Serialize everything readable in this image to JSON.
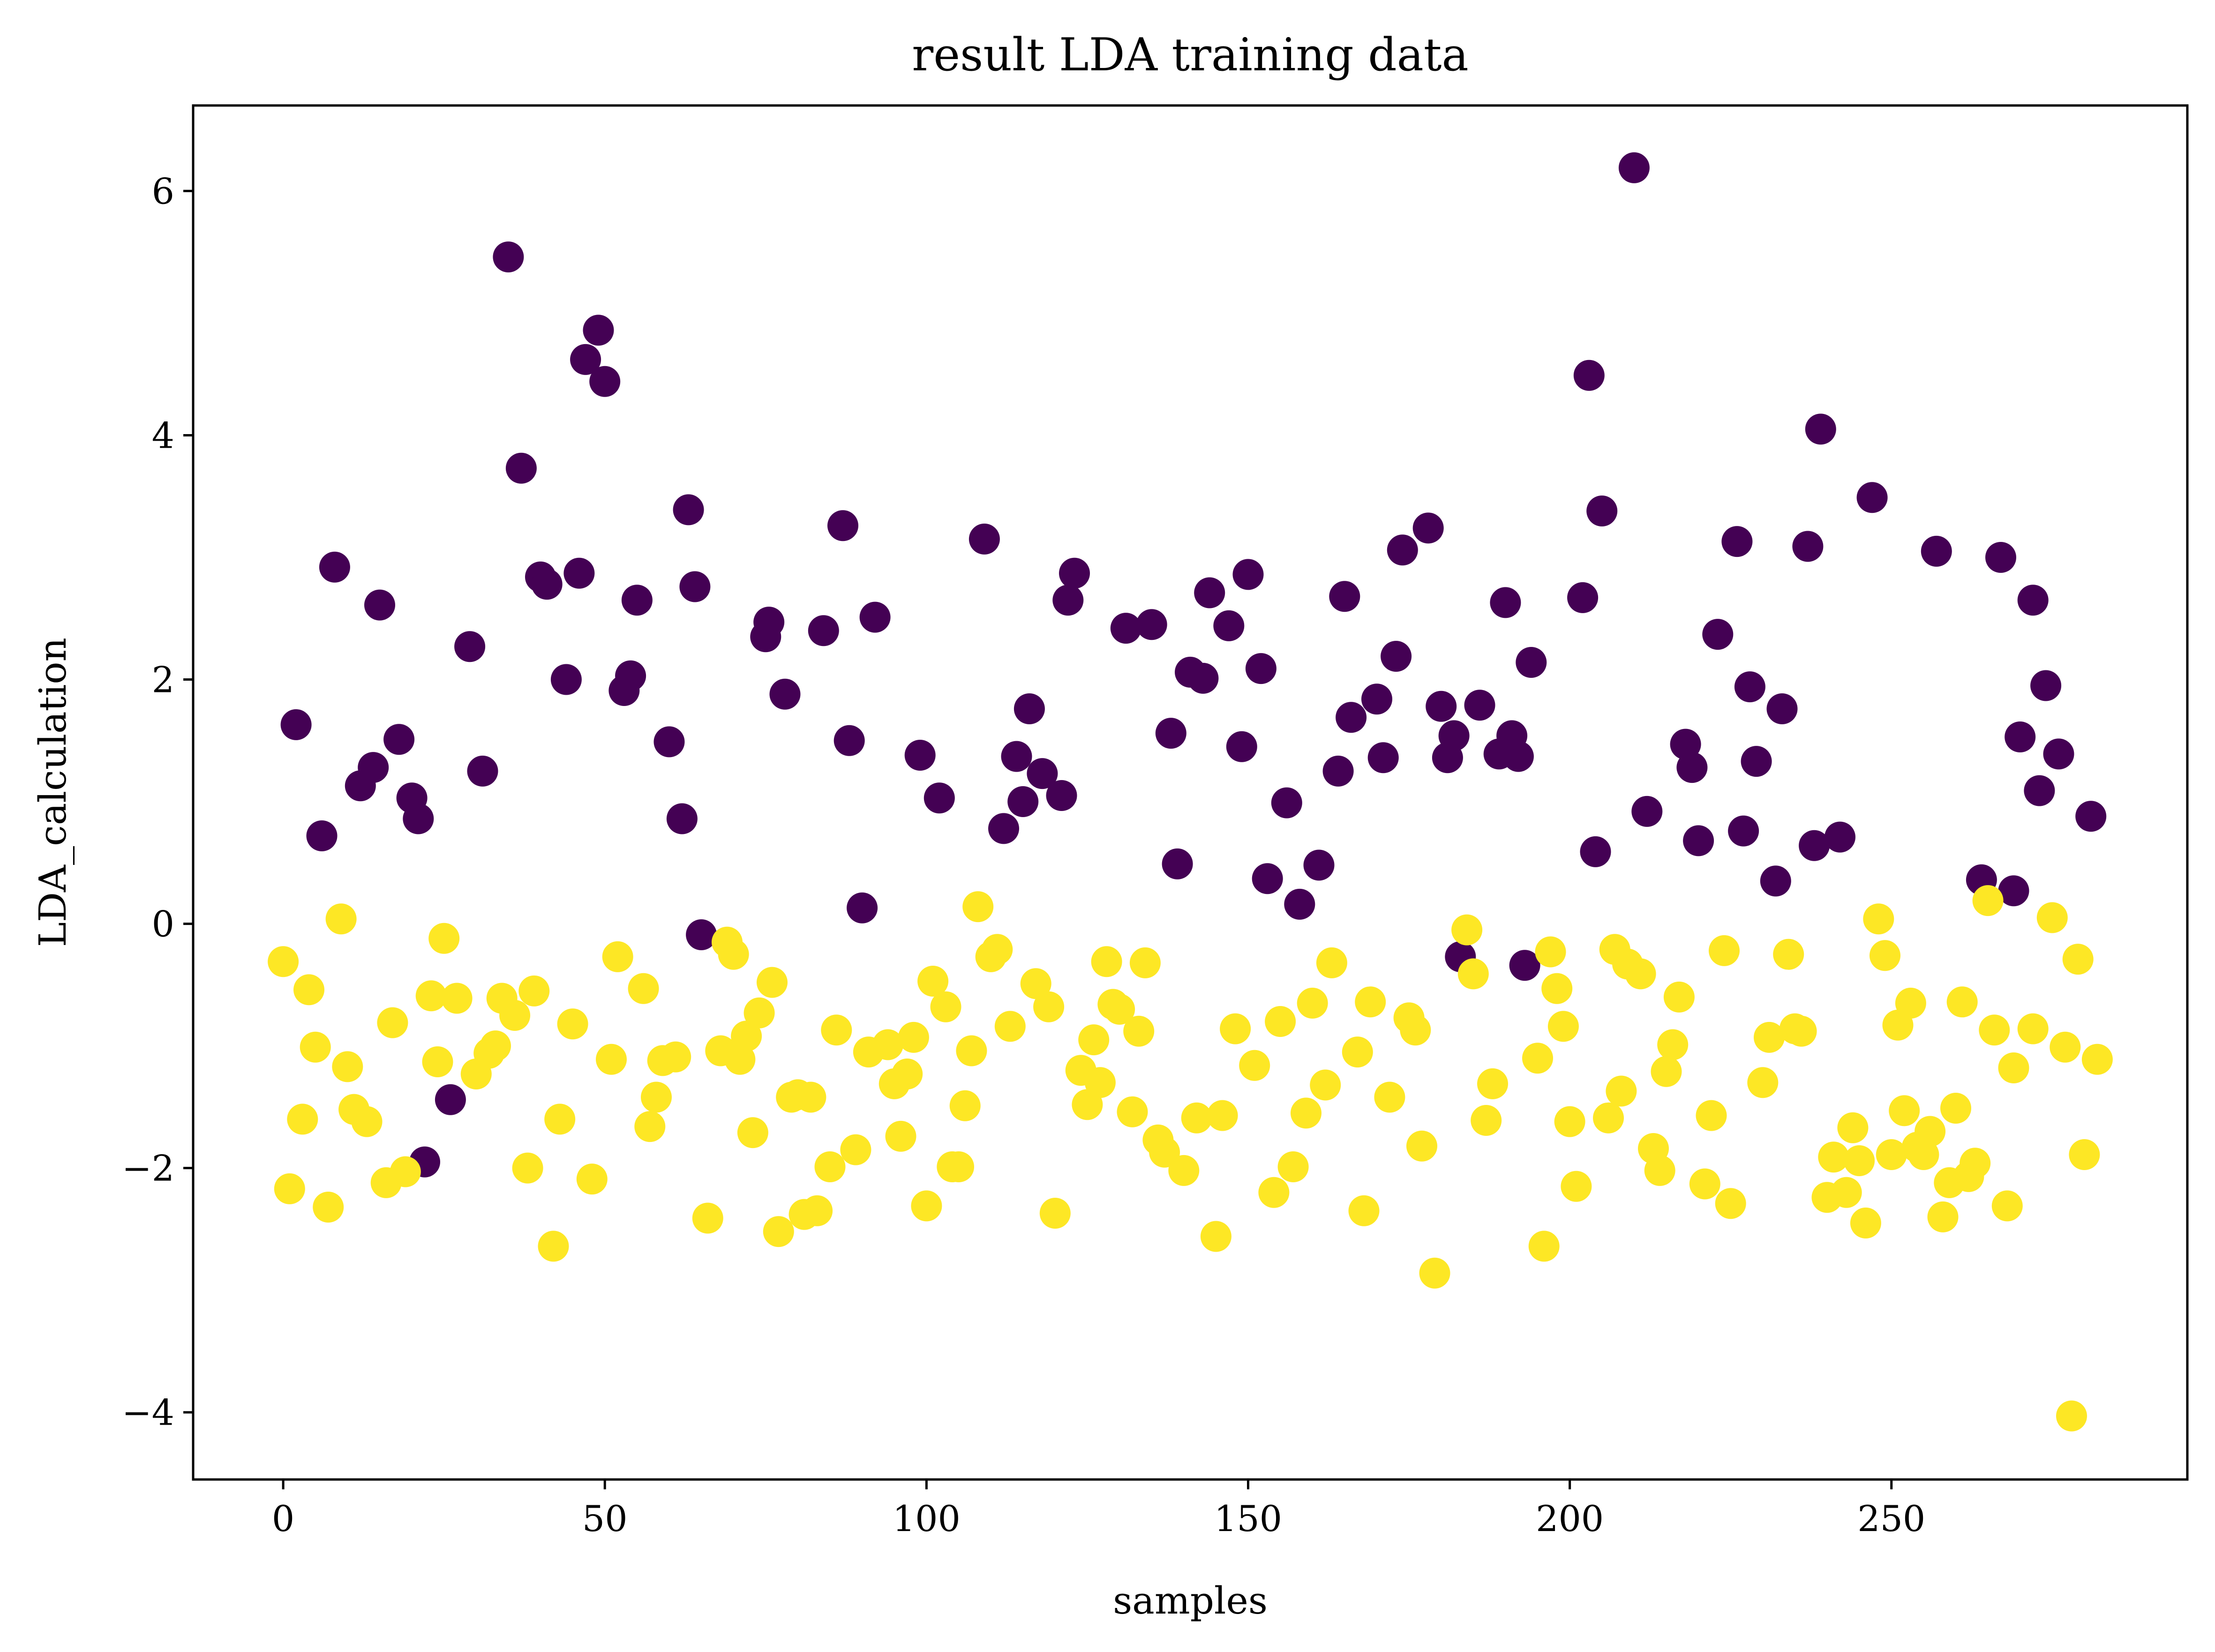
{
  "chart_data": {
    "type": "scatter",
    "title": "result LDA training data",
    "xlabel": "samples",
    "ylabel": "LDA_calculation",
    "xlim": [
      -14,
      296
    ],
    "ylim": [
      -4.55,
      6.7
    ],
    "xticks": [
      0,
      50,
      100,
      150,
      200,
      250
    ],
    "yticks": [
      -4,
      -2,
      0,
      2,
      4,
      6
    ],
    "ytick_labels": [
      "−4",
      "−2",
      "0",
      "2",
      "4",
      "6"
    ],
    "grid": false,
    "colors": {
      "class_0": "#440154",
      "class_1": "#fde725"
    },
    "series": [
      {
        "name": "class_0",
        "points": [
          [
            2,
            1.63
          ],
          [
            6,
            0.72
          ],
          [
            8,
            2.92
          ],
          [
            12,
            1.13
          ],
          [
            14,
            1.28
          ],
          [
            15,
            2.61
          ],
          [
            18,
            1.51
          ],
          [
            20,
            1.03
          ],
          [
            21,
            0.86
          ],
          [
            22,
            -1.95
          ],
          [
            26,
            -1.44
          ],
          [
            29,
            2.27
          ],
          [
            31,
            1.25
          ],
          [
            35,
            5.46
          ],
          [
            37,
            3.73
          ],
          [
            40,
            2.84
          ],
          [
            41,
            2.78
          ],
          [
            44,
            2.0
          ],
          [
            46,
            2.87
          ],
          [
            47,
            4.62
          ],
          [
            49,
            4.86
          ],
          [
            50,
            4.44
          ],
          [
            53,
            1.91
          ],
          [
            54,
            2.03
          ],
          [
            55,
            2.65
          ],
          [
            60,
            1.49
          ],
          [
            62,
            0.86
          ],
          [
            63,
            3.39
          ],
          [
            64,
            2.76
          ],
          [
            65,
            -0.09
          ],
          [
            75,
            2.35
          ],
          [
            75.5,
            2.47
          ],
          [
            78,
            1.88
          ],
          [
            84,
            2.4
          ],
          [
            87,
            3.26
          ],
          [
            88,
            1.5
          ],
          [
            90,
            0.13
          ],
          [
            92,
            2.51
          ],
          [
            99,
            1.38
          ],
          [
            102,
            1.03
          ],
          [
            109,
            3.15
          ],
          [
            112,
            0.78
          ],
          [
            114,
            1.37
          ],
          [
            115,
            1.0
          ],
          [
            116,
            1.76
          ],
          [
            118,
            1.23
          ],
          [
            121,
            1.05
          ],
          [
            122,
            2.65
          ],
          [
            123,
            2.87
          ],
          [
            131,
            2.42
          ],
          [
            135,
            2.45
          ],
          [
            138,
            1.56
          ],
          [
            139,
            0.49
          ],
          [
            141,
            2.06
          ],
          [
            143,
            2.01
          ],
          [
            144,
            2.71
          ],
          [
            147,
            2.44
          ],
          [
            149,
            1.45
          ],
          [
            150,
            2.86
          ],
          [
            152,
            2.09
          ],
          [
            153,
            0.37
          ],
          [
            156,
            0.99
          ],
          [
            158,
            0.16
          ],
          [
            161,
            0.48
          ],
          [
            164,
            1.25
          ],
          [
            165,
            2.68
          ],
          [
            166,
            1.69
          ],
          [
            170,
            1.84
          ],
          [
            171,
            1.36
          ],
          [
            173,
            2.19
          ],
          [
            174,
            3.06
          ],
          [
            178,
            3.24
          ],
          [
            180,
            1.78
          ],
          [
            181,
            1.36
          ],
          [
            182,
            1.54
          ],
          [
            183,
            -0.27
          ],
          [
            186,
            1.79
          ],
          [
            189,
            1.39
          ],
          [
            190,
            2.63
          ],
          [
            191,
            1.54
          ],
          [
            192,
            1.37
          ],
          [
            193,
            -0.34
          ],
          [
            194,
            2.14
          ],
          [
            202,
            2.67
          ],
          [
            203,
            4.49
          ],
          [
            204,
            0.59
          ],
          [
            205,
            3.38
          ],
          [
            210,
            6.19
          ],
          [
            212,
            0.92
          ],
          [
            218,
            1.47
          ],
          [
            219,
            1.28
          ],
          [
            220,
            0.68
          ],
          [
            223,
            2.37
          ],
          [
            226,
            3.13
          ],
          [
            227,
            0.76
          ],
          [
            228,
            1.94
          ],
          [
            229,
            1.33
          ],
          [
            232,
            0.35
          ],
          [
            233,
            1.76
          ],
          [
            237,
            3.09
          ],
          [
            238,
            0.64
          ],
          [
            239,
            4.05
          ],
          [
            242,
            0.71
          ],
          [
            247,
            3.49
          ],
          [
            257,
            3.05
          ],
          [
            264,
            0.36
          ],
          [
            267,
            3.0
          ],
          [
            269,
            0.27
          ],
          [
            270,
            1.53
          ],
          [
            272,
            2.65
          ],
          [
            273,
            1.09
          ],
          [
            274,
            1.95
          ],
          [
            276,
            1.39
          ],
          [
            281,
            0.88
          ]
        ]
      },
      {
        "name": "class_1",
        "points": [
          [
            0,
            -0.31
          ],
          [
            1,
            -2.17
          ],
          [
            3,
            -1.6
          ],
          [
            4,
            -0.54
          ],
          [
            5,
            -1.01
          ],
          [
            7,
            -2.32
          ],
          [
            9,
            0.04
          ],
          [
            10,
            -1.17
          ],
          [
            11,
            -1.52
          ],
          [
            13,
            -1.62
          ],
          [
            16,
            -2.12
          ],
          [
            17,
            -0.81
          ],
          [
            19,
            -2.03
          ],
          [
            23,
            -0.59
          ],
          [
            24,
            -1.13
          ],
          [
            25,
            -0.12
          ],
          [
            27,
            -0.61
          ],
          [
            30,
            -1.23
          ],
          [
            32,
            -1.06
          ],
          [
            33,
            -1.0
          ],
          [
            34,
            -0.61
          ],
          [
            36,
            -0.75
          ],
          [
            38,
            -2.0
          ],
          [
            39,
            -0.55
          ],
          [
            42,
            -2.64
          ],
          [
            43,
            -1.6
          ],
          [
            45,
            -0.82
          ],
          [
            48,
            -2.09
          ],
          [
            51,
            -1.11
          ],
          [
            52,
            -0.27
          ],
          [
            56,
            -0.53
          ],
          [
            57,
            -1.66
          ],
          [
            58,
            -1.42
          ],
          [
            59,
            -1.12
          ],
          [
            61,
            -1.09
          ],
          [
            66,
            -2.41
          ],
          [
            68,
            -1.04
          ],
          [
            69,
            -0.15
          ],
          [
            70,
            -0.25
          ],
          [
            71,
            -1.11
          ],
          [
            72,
            -0.92
          ],
          [
            73,
            -1.71
          ],
          [
            74,
            -0.73
          ],
          [
            76,
            -0.48
          ],
          [
            77,
            -2.52
          ],
          [
            79,
            -1.42
          ],
          [
            80,
            -1.4
          ],
          [
            81,
            -2.38
          ],
          [
            82,
            -1.42
          ],
          [
            83,
            -2.35
          ],
          [
            85,
            -1.99
          ],
          [
            86,
            -0.87
          ],
          [
            89,
            -1.85
          ],
          [
            91,
            -1.05
          ],
          [
            94,
            -0.99
          ],
          [
            95,
            -1.31
          ],
          [
            96,
            -1.74
          ],
          [
            97,
            -1.23
          ],
          [
            98,
            -0.93
          ],
          [
            100,
            -2.31
          ],
          [
            101,
            -0.47
          ],
          [
            103,
            -0.68
          ],
          [
            104,
            -1.99
          ],
          [
            105,
            -1.99
          ],
          [
            106,
            -1.49
          ],
          [
            107,
            -1.04
          ],
          [
            108,
            0.14
          ],
          [
            110,
            -0.27
          ],
          [
            111,
            -0.21
          ],
          [
            113,
            -0.84
          ],
          [
            117,
            -0.49
          ],
          [
            119,
            -0.68
          ],
          [
            120,
            -2.37
          ],
          [
            124,
            -1.2
          ],
          [
            125,
            -1.48
          ],
          [
            126,
            -0.95
          ],
          [
            127,
            -1.3
          ],
          [
            128,
            -0.31
          ],
          [
            129,
            -0.66
          ],
          [
            130,
            -0.7
          ],
          [
            132,
            -1.54
          ],
          [
            133,
            -0.88
          ],
          [
            134,
            -0.32
          ],
          [
            136,
            -1.77
          ],
          [
            137,
            -1.87
          ],
          [
            140,
            -2.02
          ],
          [
            142,
            -1.59
          ],
          [
            145,
            -2.56
          ],
          [
            146,
            -1.57
          ],
          [
            148,
            -0.86
          ],
          [
            151,
            -1.16
          ],
          [
            154,
            -2.2
          ],
          [
            155,
            -0.8
          ],
          [
            157,
            -1.99
          ],
          [
            159,
            -1.55
          ],
          [
            160,
            -0.65
          ],
          [
            162,
            -1.32
          ],
          [
            163,
            -0.32
          ],
          [
            167,
            -1.05
          ],
          [
            168,
            -2.35
          ],
          [
            169,
            -0.64
          ],
          [
            172,
            -1.42
          ],
          [
            175,
            -0.77
          ],
          [
            176,
            -0.87
          ],
          [
            177,
            -1.82
          ],
          [
            179,
            -2.86
          ],
          [
            184,
            -0.05
          ],
          [
            185,
            -0.41
          ],
          [
            187,
            -1.61
          ],
          [
            188,
            -1.31
          ],
          [
            195,
            -1.1
          ],
          [
            196,
            -2.64
          ],
          [
            197,
            -0.23
          ],
          [
            198,
            -0.53
          ],
          [
            199,
            -0.84
          ],
          [
            200,
            -1.62
          ],
          [
            201,
            -2.15
          ],
          [
            206,
            -1.59
          ],
          [
            207,
            -0.21
          ],
          [
            208,
            -1.37
          ],
          [
            209,
            -0.33
          ],
          [
            211,
            -0.41
          ],
          [
            213,
            -1.84
          ],
          [
            214,
            -2.02
          ],
          [
            215,
            -1.21
          ],
          [
            216,
            -0.99
          ],
          [
            217,
            -0.6
          ],
          [
            221,
            -2.13
          ],
          [
            222,
            -1.57
          ],
          [
            224,
            -0.22
          ],
          [
            225,
            -2.29
          ],
          [
            230,
            -1.3
          ],
          [
            231,
            -0.93
          ],
          [
            234,
            -0.25
          ],
          [
            235,
            -0.86
          ],
          [
            236,
            -0.88
          ],
          [
            240,
            -2.24
          ],
          [
            241,
            -1.91
          ],
          [
            243,
            -2.2
          ],
          [
            244,
            -1.67
          ],
          [
            245,
            -1.94
          ],
          [
            246,
            -2.45
          ],
          [
            248,
            0.04
          ],
          [
            249,
            -0.26
          ],
          [
            250,
            -1.89
          ],
          [
            251,
            -0.83
          ],
          [
            252,
            -1.53
          ],
          [
            253,
            -0.65
          ],
          [
            254,
            -1.83
          ],
          [
            255,
            -1.89
          ],
          [
            256,
            -1.7
          ],
          [
            258,
            -2.4
          ],
          [
            259,
            -2.12
          ],
          [
            260,
            -1.51
          ],
          [
            261,
            -0.64
          ],
          [
            262,
            -2.07
          ],
          [
            263,
            -1.96
          ],
          [
            265,
            0.19
          ],
          [
            266,
            -0.87
          ],
          [
            268,
            -2.31
          ],
          [
            269,
            -1.18
          ],
          [
            272,
            -0.86
          ],
          [
            275,
            0.05
          ],
          [
            277,
            -1.01
          ],
          [
            278,
            -4.03
          ],
          [
            279,
            -0.29
          ],
          [
            280,
            -1.89
          ],
          [
            282,
            -1.11
          ]
        ]
      }
    ]
  }
}
